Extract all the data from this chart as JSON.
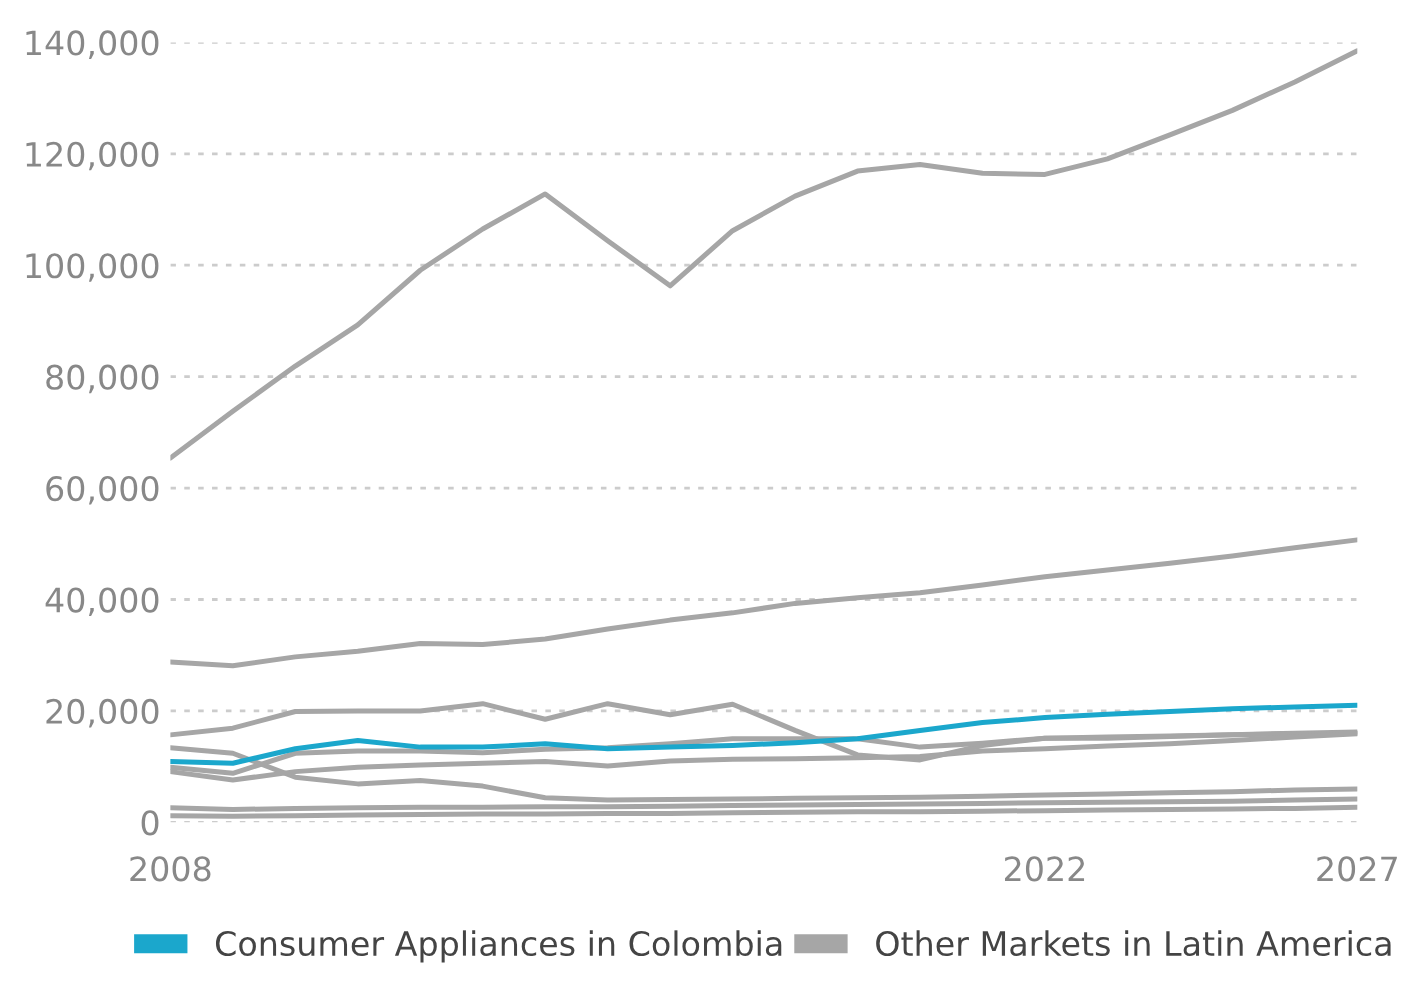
{
  "chart_data": {
    "type": "line",
    "x": [
      2008,
      2009,
      2010,
      2011,
      2012,
      2013,
      2014,
      2015,
      2016,
      2017,
      2018,
      2019,
      2020,
      2021,
      2022,
      2023,
      2024,
      2025,
      2026,
      2027
    ],
    "series": [
      {
        "name": "Consumer Appliances in Colombia",
        "color": "#1ba7cc",
        "values": [
          10900,
          10600,
          13200,
          14700,
          13500,
          13500,
          14100,
          13200,
          13500,
          13800,
          14300,
          15000,
          16500,
          17900,
          18800,
          19400,
          19900,
          20400,
          20700,
          21000
        ]
      },
      {
        "name": "Other Markets in Latin America",
        "color": "#a6a6a6",
        "values": [
          65400,
          73800,
          81900,
          89300,
          99100,
          106500,
          112800,
          104400,
          96300,
          106200,
          112400,
          116900,
          118100,
          116500,
          116300,
          119100,
          123400,
          127800,
          132900,
          138500
        ]
      },
      {
        "color": "#a6a6a6",
        "values": [
          28800,
          28100,
          29700,
          30700,
          32100,
          31900,
          32900,
          34700,
          36300,
          37600,
          39300,
          40300,
          41200,
          42600,
          44100,
          45300,
          46500,
          47800,
          49300,
          50700
        ]
      },
      {
        "color": "#a6a6a6",
        "values": [
          15700,
          16900,
          19900,
          20000,
          20000,
          21300,
          18500,
          21300,
          19300,
          21200,
          16500,
          12100,
          11200,
          13800,
          15100,
          15100,
          15400,
          15700,
          16000,
          16200
        ]
      },
      {
        "color": "#a6a6a6",
        "values": [
          13400,
          12400,
          8100,
          6900,
          7500,
          6500,
          4400,
          4000,
          4100,
          4200,
          4300,
          4400,
          4500,
          4700,
          4900,
          5100,
          5300,
          5500,
          5800,
          6000
        ]
      },
      {
        "color": "#a6a6a6",
        "values": [
          9900,
          8800,
          12400,
          12800,
          12800,
          12500,
          13100,
          13400,
          14100,
          15000,
          15000,
          15000,
          13500,
          14200,
          15100,
          15300,
          15500,
          15700,
          15900,
          16000
        ]
      },
      {
        "color": "#a6a6a6",
        "values": [
          9100,
          7600,
          9100,
          9900,
          10300,
          10600,
          10900,
          10100,
          11000,
          11300,
          11400,
          11600,
          11800,
          12800,
          13200,
          13700,
          14100,
          14700,
          15300,
          15900
        ]
      },
      {
        "color": "#a6a6a6",
        "values": [
          2600,
          2300,
          2500,
          2600,
          2700,
          2700,
          2800,
          2800,
          2900,
          3000,
          3100,
          3200,
          3300,
          3400,
          3500,
          3600,
          3700,
          3800,
          4000,
          4200
        ]
      },
      {
        "color": "#a6a6a6",
        "values": [
          1200,
          1100,
          1200,
          1300,
          1400,
          1500,
          1500,
          1600,
          1600,
          1700,
          1800,
          1900,
          1900,
          2000,
          2100,
          2200,
          2300,
          2400,
          2500,
          2700
        ]
      }
    ],
    "xlim": [
      2008,
      2027
    ],
    "xticks": [
      2008,
      2022,
      2027
    ],
    "ylim": [
      0,
      140000
    ],
    "yticks": [
      {
        "value": 0,
        "label": "0"
      },
      {
        "value": 20000,
        "label": "20,000"
      },
      {
        "value": 40000,
        "label": "40,000"
      },
      {
        "value": 60000,
        "label": "60,000"
      },
      {
        "value": 80000,
        "label": "80,000"
      },
      {
        "value": 100000,
        "label": "100,000"
      },
      {
        "value": 120000,
        "label": "120,000"
      },
      {
        "value": 140000,
        "label": "140,000"
      }
    ],
    "grid": "y",
    "legend": "bottom",
    "marker": "none",
    "line_style": "solid"
  }
}
